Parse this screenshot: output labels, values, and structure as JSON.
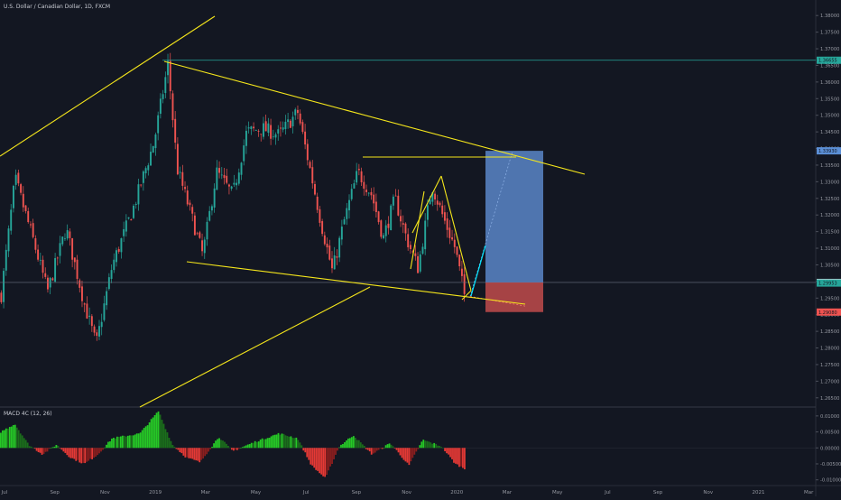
{
  "chart_data": [
    {
      "type": "candlestick",
      "title": "U.S. Dollar / Canadian Dollar, 1D, FXCM",
      "x_ticks": [
        "Jul",
        "Sep",
        "Nov",
        "2019",
        "Mar",
        "May",
        "Jul",
        "Sep",
        "Nov",
        "2020",
        "Mar",
        "May",
        "Jul",
        "Sep",
        "Nov",
        "2021",
        "Mar"
      ],
      "y_ticks": [
        "1.38000",
        "1.37500",
        "1.37000",
        "1.36500",
        "1.36000",
        "1.35500",
        "1.35000",
        "1.34500",
        "1.34000",
        "1.33500",
        "1.33000",
        "1.32500",
        "1.32000",
        "1.31500",
        "1.31000",
        "1.30500",
        "1.30000",
        "1.29500",
        "1.29000",
        "1.28500",
        "1.28000",
        "1.27500",
        "1.27000",
        "1.26500"
      ],
      "ylim": [
        1.2625,
        1.3825
      ],
      "price_tags": [
        {
          "label": "1.36655",
          "value": 1.36655,
          "color": "#26a69a"
        },
        {
          "label": "1.33930",
          "value": 1.3393,
          "color": "#5b8fd6"
        },
        {
          "label": "1.29971",
          "value": 1.29971,
          "color": "#d1d4dc"
        },
        {
          "label": "1.29953",
          "value": 1.29953,
          "color": "#26a69a"
        },
        {
          "label": "1.29080",
          "value": 1.2908,
          "color": "#ef5350"
        }
      ],
      "anchors": [
        {
          "t": 0.0,
          "p": 1.296
        },
        {
          "t": 0.03,
          "p": 1.331
        },
        {
          "t": 0.07,
          "p": 1.312
        },
        {
          "t": 0.1,
          "p": 1.297
        },
        {
          "t": 0.14,
          "p": 1.316
        },
        {
          "t": 0.18,
          "p": 1.293
        },
        {
          "t": 0.205,
          "p": 1.281
        },
        {
          "t": 0.24,
          "p": 1.305
        },
        {
          "t": 0.285,
          "p": 1.322
        },
        {
          "t": 0.33,
          "p": 1.342
        },
        {
          "t": 0.36,
          "p": 1.3655
        },
        {
          "t": 0.38,
          "p": 1.334
        },
        {
          "t": 0.41,
          "p": 1.32
        },
        {
          "t": 0.435,
          "p": 1.308
        },
        {
          "t": 0.465,
          "p": 1.333
        },
        {
          "t": 0.5,
          "p": 1.326
        },
        {
          "t": 0.53,
          "p": 1.345
        },
        {
          "t": 0.565,
          "p": 1.346
        },
        {
          "t": 0.6,
          "p": 1.344
        },
        {
          "t": 0.64,
          "p": 1.351
        },
        {
          "t": 0.665,
          "p": 1.335
        },
        {
          "t": 0.69,
          "p": 1.318
        },
        {
          "t": 0.715,
          "p": 1.303
        },
        {
          "t": 0.74,
          "p": 1.318
        },
        {
          "t": 0.77,
          "p": 1.333
        },
        {
          "t": 0.8,
          "p": 1.326
        },
        {
          "t": 0.825,
          "p": 1.313
        },
        {
          "t": 0.85,
          "p": 1.325
        },
        {
          "t": 0.875,
          "p": 1.313
        },
        {
          "t": 0.9,
          "p": 1.304
        },
        {
          "t": 0.93,
          "p": 1.329
        },
        {
          "t": 0.955,
          "p": 1.319
        },
        {
          "t": 0.98,
          "p": 1.31
        },
        {
          "t": 1.0,
          "p": 1.296
        }
      ]
    },
    {
      "type": "histogram",
      "title": "MACD 4C (12, 26)",
      "y_ticks": [
        "0.01000",
        "0.00500",
        "0.00000",
        "-0.00500",
        "-0.01000"
      ],
      "ylim": [
        -0.0115,
        0.0125
      ],
      "anchors": [
        {
          "t": 0.0,
          "v": 0.005
        },
        {
          "t": 0.03,
          "v": 0.0075
        },
        {
          "t": 0.06,
          "v": 0.001
        },
        {
          "t": 0.09,
          "v": -0.002
        },
        {
          "t": 0.12,
          "v": 0.001
        },
        {
          "t": 0.15,
          "v": -0.003
        },
        {
          "t": 0.18,
          "v": -0.005
        },
        {
          "t": 0.21,
          "v": -0.002
        },
        {
          "t": 0.24,
          "v": 0.003
        },
        {
          "t": 0.3,
          "v": 0.0045
        },
        {
          "t": 0.34,
          "v": 0.0115
        },
        {
          "t": 0.37,
          "v": 0.001
        },
        {
          "t": 0.4,
          "v": -0.003
        },
        {
          "t": 0.43,
          "v": -0.0045
        },
        {
          "t": 0.47,
          "v": 0.0035
        },
        {
          "t": 0.5,
          "v": -0.001
        },
        {
          "t": 0.55,
          "v": 0.002
        },
        {
          "t": 0.6,
          "v": 0.0045
        },
        {
          "t": 0.64,
          "v": 0.003
        },
        {
          "t": 0.67,
          "v": -0.0055
        },
        {
          "t": 0.7,
          "v": -0.0095
        },
        {
          "t": 0.73,
          "v": 0.0005
        },
        {
          "t": 0.76,
          "v": 0.004
        },
        {
          "t": 0.8,
          "v": -0.002
        },
        {
          "t": 0.84,
          "v": 0.0015
        },
        {
          "t": 0.88,
          "v": -0.0055
        },
        {
          "t": 0.91,
          "v": 0.0025
        },
        {
          "t": 0.95,
          "v": 0.0005
        },
        {
          "t": 0.98,
          "v": -0.005
        },
        {
          "t": 1.0,
          "v": -0.0065
        }
      ],
      "colors": {
        "pos_strong": "#26c926",
        "pos_weak": "#1b6e1b",
        "neg_strong": "#e53935",
        "neg_weak": "#8b1e1e"
      }
    }
  ],
  "colors": {
    "background": "#131722",
    "up": "#26a69a",
    "down": "#ef5350",
    "drawing": "#f5e61b",
    "projection": "#00e5ff",
    "target": "#5b86c8",
    "stop": "#c14b4b",
    "hline": "#26a69a"
  }
}
